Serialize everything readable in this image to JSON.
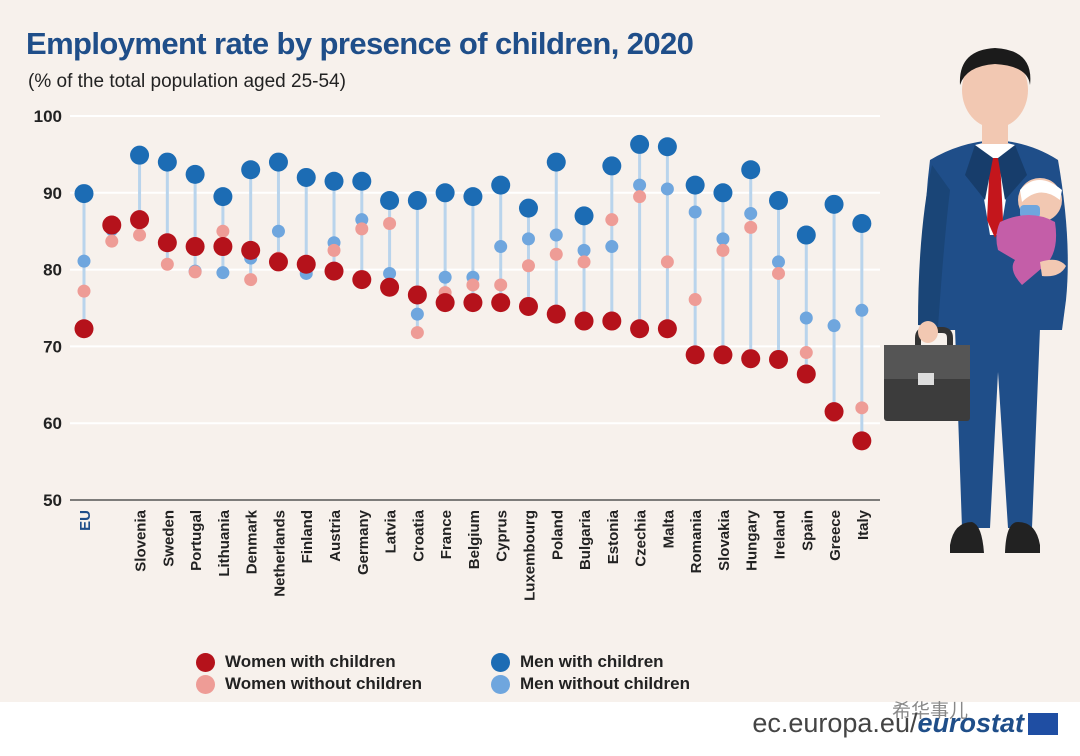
{
  "chart_data": {
    "type": "scatter",
    "title": "Employment rate by presence of children, 2020",
    "subtitle": "(% of the total population aged 25-54)",
    "ylim": [
      50,
      100
    ],
    "yticks": [
      50,
      60,
      70,
      80,
      90,
      100
    ],
    "grid": true,
    "legend_position": "bottom",
    "categories": [
      "EU",
      "",
      "Slovenia",
      "Sweden",
      "Portugal",
      "Lithuania",
      "Denmark",
      "Netherlands",
      "Finland",
      "Austria",
      "Germany",
      "Latvia",
      "Croatia",
      "France",
      "Belgium",
      "Cyprus",
      "Luxembourg",
      "Poland",
      "Bulgaria",
      "Estonia",
      "Czechia",
      "Malta",
      "Romania",
      "Slovakia",
      "Hungary",
      "Ireland",
      "Spain",
      "Greece",
      "Italy"
    ],
    "series": [
      {
        "name": "Women with children",
        "color": "#b5121b",
        "values": [
          72.3,
          85.8,
          86.5,
          83.5,
          83.0,
          83.0,
          82.5,
          81.0,
          80.7,
          79.8,
          78.7,
          77.7,
          76.7,
          75.7,
          75.7,
          75.7,
          75.2,
          74.2,
          73.3,
          73.3,
          72.3,
          72.3,
          68.9,
          68.9,
          68.4,
          68.3,
          66.4,
          61.5,
          57.7
        ]
      },
      {
        "name": "Women without children",
        "color": "#ee9c96",
        "values": [
          77.2,
          83.7,
          84.5,
          80.7,
          79.7,
          85.0,
          78.7,
          81.5,
          80.5,
          82.5,
          85.3,
          86.0,
          71.8,
          77.0,
          78.0,
          78.0,
          80.5,
          82.0,
          81.0,
          86.5,
          89.5,
          81.0,
          76.1,
          82.5,
          85.5,
          79.5,
          69.2,
          61.0,
          62.0
        ]
      },
      {
        "name": "Men with children",
        "color": "#1c6cb4",
        "values": [
          89.9,
          null,
          94.9,
          94.0,
          92.4,
          89.5,
          93.0,
          94.0,
          92.0,
          91.5,
          91.5,
          89.0,
          89.0,
          90.0,
          89.5,
          91.0,
          88.0,
          94.0,
          87.0,
          93.5,
          96.3,
          96.0,
          91.0,
          90.0,
          93.0,
          89.0,
          84.5,
          88.5,
          86.0
        ]
      },
      {
        "name": "Men without children",
        "color": "#6fa6de",
        "values": [
          81.1,
          85.2,
          86.2,
          83.5,
          79.8,
          79.6,
          81.5,
          85.0,
          79.5,
          83.5,
          86.5,
          79.5,
          74.2,
          79.0,
          79.0,
          83.0,
          84.0,
          84.5,
          82.5,
          83.0,
          91.0,
          90.5,
          87.5,
          84.0,
          87.3,
          81.0,
          73.7,
          72.7,
          74.7
        ]
      }
    ]
  },
  "footer": {
    "source": "ec.europa.eu/",
    "brand": "eurostat",
    "watermark": "希华事儿"
  }
}
